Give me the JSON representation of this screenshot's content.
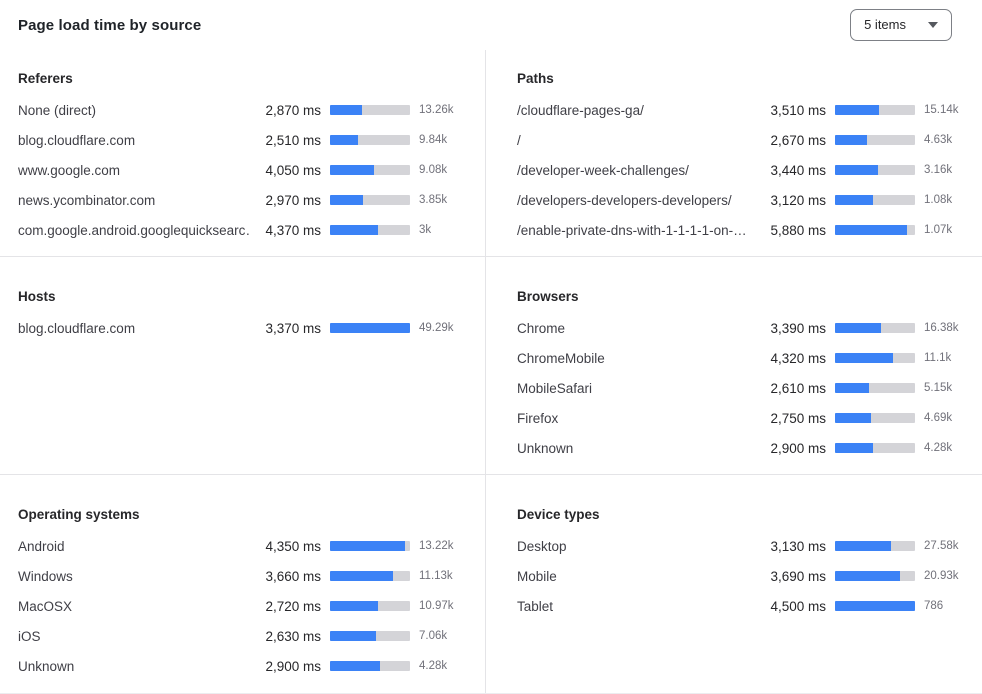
{
  "colors": {
    "bar_fill": "#3b82f6",
    "bar_track": "#d4d4d8",
    "ink": "#1f2328"
  },
  "header": {
    "title": "Page load time by source",
    "items_select": {
      "value": "5 items",
      "icon": "chevron-down-icon"
    }
  },
  "sections": [
    {
      "id": "referers",
      "title": "Referers",
      "rows": [
        {
          "label": "None (direct)",
          "ms": "2,870 ms",
          "count": "13.26k",
          "fill_pct": 40
        },
        {
          "label": "blog.cloudflare.com",
          "ms": "2,510 ms",
          "count": "9.84k",
          "fill_pct": 35
        },
        {
          "label": "www.google.com",
          "ms": "4,050 ms",
          "count": "9.08k",
          "fill_pct": 55
        },
        {
          "label": "news.ycombinator.com",
          "ms": "2,970 ms",
          "count": "3.85k",
          "fill_pct": 41
        },
        {
          "label": "com.google.android.googlequicksearc…",
          "ms": "4,370 ms",
          "count": "3k",
          "fill_pct": 60
        }
      ]
    },
    {
      "id": "paths",
      "title": "Paths",
      "rows": [
        {
          "label": "/cloudflare-pages-ga/",
          "ms": "3,510 ms",
          "count": "15.14k",
          "fill_pct": 55
        },
        {
          "label": "/",
          "ms": "2,670 ms",
          "count": "4.63k",
          "fill_pct": 40
        },
        {
          "label": "/developer-week-challenges/",
          "ms": "3,440 ms",
          "count": "3.16k",
          "fill_pct": 54
        },
        {
          "label": "/developers-developers-developers/",
          "ms": "3,120 ms",
          "count": "1.08k",
          "fill_pct": 48
        },
        {
          "label": "/enable-private-dns-with-1-1-1-1-on-…",
          "ms": "5,880 ms",
          "count": "1.07k",
          "fill_pct": 90
        }
      ]
    },
    {
      "id": "hosts",
      "title": "Hosts",
      "rows": [
        {
          "label": "blog.cloudflare.com",
          "ms": "3,370 ms",
          "count": "49.29k",
          "fill_pct": 100
        }
      ]
    },
    {
      "id": "browsers",
      "title": "Browsers",
      "rows": [
        {
          "label": "Chrome",
          "ms": "3,390 ms",
          "count": "16.38k",
          "fill_pct": 57
        },
        {
          "label": "ChromeMobile",
          "ms": "4,320 ms",
          "count": "11.1k",
          "fill_pct": 72
        },
        {
          "label": "MobileSafari",
          "ms": "2,610 ms",
          "count": "5.15k",
          "fill_pct": 43
        },
        {
          "label": "Firefox",
          "ms": "2,750 ms",
          "count": "4.69k",
          "fill_pct": 45
        },
        {
          "label": "Unknown",
          "ms": "2,900 ms",
          "count": "4.28k",
          "fill_pct": 48
        }
      ]
    },
    {
      "id": "operating-systems",
      "title": "Operating systems",
      "rows": [
        {
          "label": "Android",
          "ms": "4,350 ms",
          "count": "13.22k",
          "fill_pct": 94
        },
        {
          "label": "Windows",
          "ms": "3,660 ms",
          "count": "11.13k",
          "fill_pct": 79
        },
        {
          "label": "MacOSX",
          "ms": "2,720 ms",
          "count": "10.97k",
          "fill_pct": 60
        },
        {
          "label": "iOS",
          "ms": "2,630 ms",
          "count": "7.06k",
          "fill_pct": 57
        },
        {
          "label": "Unknown",
          "ms": "2,900 ms",
          "count": "4.28k",
          "fill_pct": 62
        }
      ]
    },
    {
      "id": "device-types",
      "title": "Device types",
      "rows": [
        {
          "label": "Desktop",
          "ms": "3,130 ms",
          "count": "27.58k",
          "fill_pct": 70
        },
        {
          "label": "Mobile",
          "ms": "3,690 ms",
          "count": "20.93k",
          "fill_pct": 81
        },
        {
          "label": "Tablet",
          "ms": "4,500 ms",
          "count": "786",
          "fill_pct": 100
        }
      ]
    }
  ]
}
